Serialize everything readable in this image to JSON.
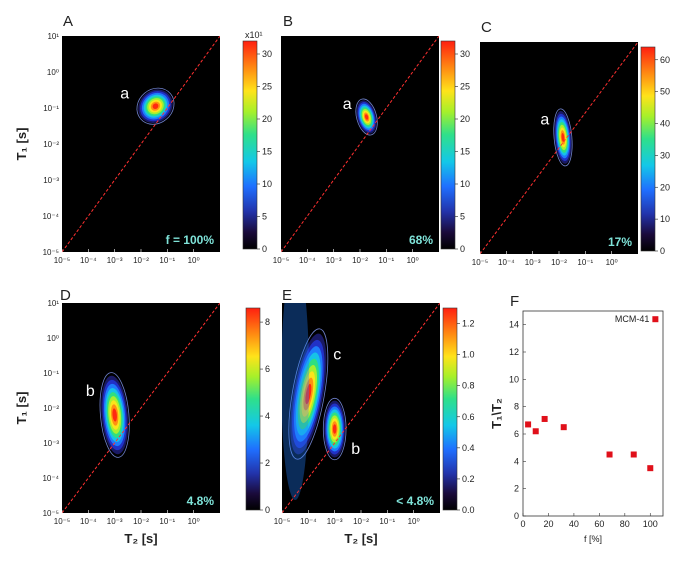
{
  "figure": {
    "colors": {
      "background": "#000000",
      "diagonal": "#ff3030",
      "annotation": "#7fe3d9",
      "marker": "#e0101a"
    }
  },
  "chart_data": [
    {
      "panel": "A",
      "type": "heatmap",
      "ylabel": "T₁ [s]",
      "xlabel": "",
      "x_ticks": [
        "10⁻⁵",
        "10⁻⁴",
        "10⁻³",
        "10⁻²",
        "10⁻¹",
        "10⁰"
      ],
      "y_ticks": [
        "10¹",
        "10⁰",
        "10⁻¹",
        "10⁻²",
        "10⁻³",
        "10⁻⁴",
        "10⁻⁵"
      ],
      "xlim": [
        -5,
        1
      ],
      "ylim": [
        -5,
        1
      ],
      "colorbar": {
        "min": 0,
        "max": 32,
        "ticks": [
          "0",
          "5",
          "10",
          "15",
          "20",
          "25",
          "30"
        ],
        "multiplier": "x10¹"
      },
      "peaks": [
        {
          "label": "a",
          "log_t2": -1.45,
          "log_t1": -0.95,
          "spread_x": 0.55,
          "spread_y": 0.35,
          "tilt": -40,
          "intensity": 31
        }
      ],
      "annotation": "f = 100%"
    },
    {
      "panel": "B",
      "type": "heatmap",
      "ylabel": "",
      "xlabel": "",
      "x_ticks": [
        "10⁻⁵",
        "10⁻⁴",
        "10⁻³",
        "10⁻²",
        "10⁻¹",
        "10⁰"
      ],
      "xlim": [
        -5,
        1
      ],
      "ylim": [
        -5,
        1
      ],
      "colorbar": {
        "min": 0,
        "max": 32,
        "ticks": [
          "0",
          "5",
          "10",
          "15",
          "20",
          "25",
          "30"
        ]
      },
      "peaks": [
        {
          "label": "a",
          "log_t2": -1.75,
          "log_t1": -1.25,
          "spread_x": 0.28,
          "spread_y": 0.38,
          "tilt": -15,
          "intensity": 31
        }
      ],
      "annotation": "68%"
    },
    {
      "panel": "C",
      "type": "heatmap",
      "ylabel": "",
      "xlabel": "",
      "x_ticks": [
        "10⁻⁵",
        "10⁻⁴",
        "10⁻³",
        "10⁻²",
        "10⁻¹",
        "10⁰"
      ],
      "xlim": [
        -5,
        1
      ],
      "ylim": [
        -5,
        1
      ],
      "colorbar": {
        "min": 0,
        "max": 64,
        "ticks": [
          "0",
          "10",
          "20",
          "30",
          "40",
          "50",
          "60"
        ]
      },
      "peaks": [
        {
          "label": "a",
          "log_t2": -1.85,
          "log_t1": -1.7,
          "spread_x": 0.25,
          "spread_y": 0.6,
          "tilt": -5,
          "intensity": 62
        }
      ],
      "annotation": "17%"
    },
    {
      "panel": "D",
      "type": "heatmap",
      "ylabel": "T₁ [s]",
      "xlabel": "T₂ [s]",
      "x_ticks": [
        "10⁻⁵",
        "10⁻⁴",
        "10⁻³",
        "10⁻²",
        "10⁻¹",
        "10⁰"
      ],
      "y_ticks": [
        "10¹",
        "10⁰",
        "10⁻¹",
        "10⁻²",
        "10⁻³",
        "10⁻⁴",
        "10⁻⁵"
      ],
      "xlim": [
        -5,
        1
      ],
      "ylim": [
        -5,
        1
      ],
      "colorbar": {
        "min": 0,
        "max": 8.6,
        "ticks": [
          "0",
          "2",
          "4",
          "6",
          "8"
        ]
      },
      "peaks": [
        {
          "label": "b",
          "log_t2": -3.0,
          "log_t1": -2.2,
          "spread_x": 0.4,
          "spread_y": 0.9,
          "tilt": -5,
          "intensity": 8.4
        }
      ],
      "annotation": "4.8%"
    },
    {
      "panel": "E",
      "type": "heatmap",
      "ylabel": "",
      "xlabel": "T₂ [s]",
      "x_ticks": [
        "10⁻⁵",
        "10⁻⁴",
        "10⁻³",
        "10⁻²",
        "10⁻¹",
        "10⁰"
      ],
      "xlim": [
        -5,
        1
      ],
      "ylim": [
        -5,
        1
      ],
      "colorbar": {
        "min": 0,
        "max": 1.3,
        "ticks": [
          "0.0",
          "0.2",
          "0.4",
          "0.6",
          "0.8",
          "1.0",
          "1.2"
        ]
      },
      "peaks": [
        {
          "label": "c",
          "log_t2": -4.0,
          "log_t1": -1.6,
          "spread_x": 0.45,
          "spread_y": 1.4,
          "tilt": 10,
          "intensity": 1.2
        },
        {
          "label": "b",
          "log_t2": -3.0,
          "log_t1": -2.6,
          "spread_x": 0.32,
          "spread_y": 0.65,
          "tilt": 0,
          "intensity": 1.2
        }
      ],
      "annotation": "< 4.8%"
    },
    {
      "panel": "F",
      "type": "scatter",
      "ylabel": "T₁\\T₂",
      "xlabel": "f [%]",
      "xlim": [
        0,
        110
      ],
      "ylim": [
        0,
        15
      ],
      "x_ticks": [
        0,
        20,
        40,
        60,
        80,
        100
      ],
      "y_ticks": [
        0,
        2,
        4,
        6,
        8,
        10,
        12,
        14
      ],
      "x": [
        4,
        10,
        17,
        32,
        68,
        87,
        100,
        104
      ],
      "y": [
        6.7,
        6.2,
        7.1,
        6.5,
        4.5,
        4.5,
        3.5,
        14.4
      ],
      "point_labels": {
        "7": "MCM-41"
      }
    }
  ]
}
